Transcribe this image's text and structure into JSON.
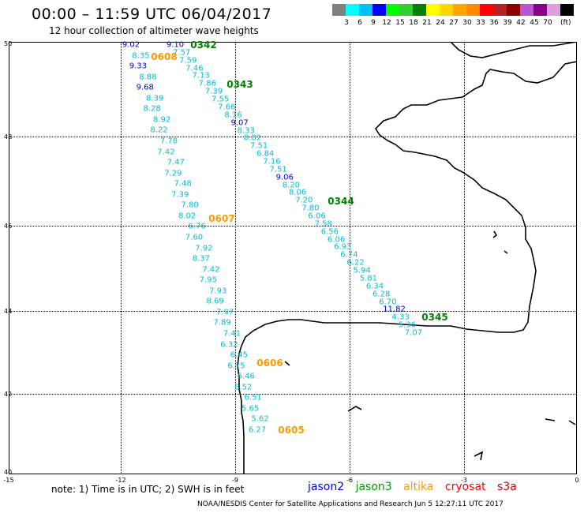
{
  "header": {
    "title": "00:00 – 11:59 UTC 06/04/2017",
    "subtitle": "12 hour collection of altimeter wave heights"
  },
  "scale": {
    "unit": "(ft)",
    "colors": [
      "#808080",
      "#00ffff",
      "#00bfff",
      "#0000ff",
      "#00ff00",
      "#32cd32",
      "#008000",
      "#ffff00",
      "#ffd700",
      "#ffa500",
      "#ff8c00",
      "#ff0000",
      "#b22222",
      "#8b0000",
      "#ba55d3",
      "#8b008b",
      "#dda0dd",
      "#000000"
    ],
    "labels": [
      "3",
      "6",
      "9",
      "12",
      "15",
      "18",
      "21",
      "24",
      "27",
      "30",
      "33",
      "36",
      "39",
      "42",
      "45",
      "70"
    ]
  },
  "axes": {
    "lat_labels": [
      "50",
      "48",
      "46",
      "44",
      "42",
      "40"
    ],
    "lon_labels": [
      "-15",
      "-12",
      "-9",
      "-6",
      "-3",
      "0"
    ]
  },
  "passes": [
    {
      "label": "0342",
      "color": "#008000"
    },
    {
      "label": "0343",
      "color": "#008000"
    },
    {
      "label": "0344",
      "color": "#008000"
    },
    {
      "label": "0345",
      "color": "#008000"
    },
    {
      "label": "0608",
      "color": "#ff9900"
    },
    {
      "label": "0607",
      "color": "#ff9900"
    },
    {
      "label": "0606",
      "color": "#ff9900"
    },
    {
      "label": "0605",
      "color": "#ff9900"
    }
  ],
  "track_west_values": [
    "9.02",
    "8.35",
    "9.33",
    "8.88",
    "9.68",
    "8.39",
    "8.28",
    "8.92",
    "8.22",
    "7.78",
    "7.42",
    "7.47",
    "7.29",
    "7.48",
    "7.39",
    "7.80",
    "8.02",
    "6.76",
    "7.60",
    "7.92",
    "8.37",
    "7.42",
    "7.95",
    "7.93",
    "8.69",
    "7.97",
    "7.89",
    "7.41",
    "6.32",
    "6.45",
    "6.75",
    "6.46",
    "6.52",
    "6.51",
    "5.65",
    "5.62",
    "6.27"
  ],
  "track_east_values": [
    "9.10",
    "7.57",
    "7.59",
    "7.46",
    "7.13",
    "7.86",
    "7.39",
    "7.55",
    "7.66",
    "8.16",
    "9.07",
    "8.33",
    "8.82",
    "7.51",
    "6.84",
    "7.16",
    "7.51",
    "9.06",
    "8.20",
    "8.06",
    "7.20",
    "7.80",
    "6.06",
    "7.58",
    "6.56",
    "6.06",
    "6.93",
    "6.74",
    "6.22",
    "5.94",
    "5.81",
    "6.34",
    "6.28",
    "6.70",
    "11.82",
    "4.33",
    "5.36",
    "7.07"
  ],
  "note": "note:  1) Time is in UTC;  2) SWH is in feet",
  "satellites": [
    {
      "name": "jason2",
      "color": "#0000ff"
    },
    {
      "name": "jason3",
      "color": "#009900"
    },
    {
      "name": "altika",
      "color": "#ff9900"
    },
    {
      "name": "cryosat",
      "color": "#ff0000"
    },
    {
      "name": "s3a",
      "color": "#cc0000"
    }
  ],
  "credit": "NOAA/NESDIS Center for Satellite Applications and Research   Jun  5 12:27:11 UTC 2017"
}
